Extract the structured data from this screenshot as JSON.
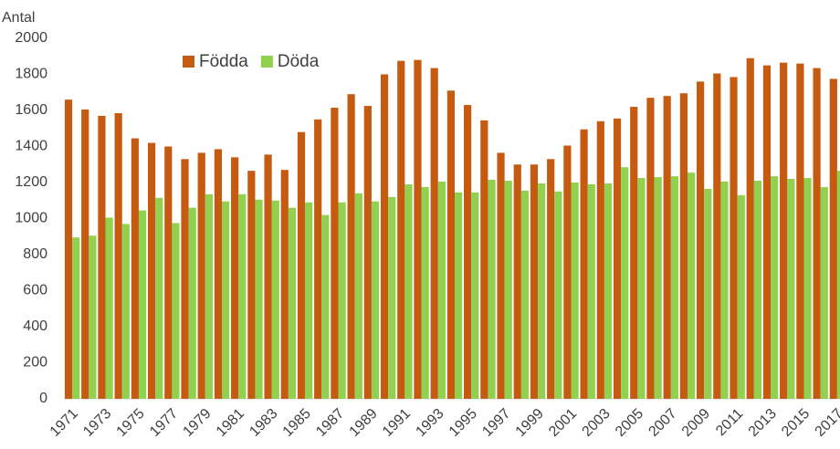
{
  "chart_data": {
    "type": "bar",
    "y_label": "Antal",
    "categories": [
      "1971",
      null,
      "1973",
      null,
      "1975",
      null,
      "1977",
      null,
      "1979",
      null,
      "1981",
      null,
      "1983",
      null,
      "1985",
      null,
      "1987",
      null,
      "1989",
      null,
      "1991",
      null,
      "1993",
      null,
      "1995",
      null,
      "1997",
      null,
      "1999",
      null,
      "2001",
      null,
      "2003",
      null,
      "2005",
      null,
      "2007",
      null,
      "2009",
      null,
      "2011",
      null,
      "2013",
      null,
      "2015",
      null,
      "2017"
    ],
    "series": [
      {
        "name": "Födda",
        "color": "#c55a11",
        "values": [
          1660,
          1605,
          1570,
          1585,
          1445,
          1420,
          1400,
          1330,
          1365,
          1385,
          1340,
          1265,
          1355,
          1270,
          1480,
          1550,
          1615,
          1690,
          1625,
          1800,
          1875,
          1880,
          1835,
          1710,
          1630,
          1545,
          1365,
          1300,
          1300,
          1330,
          1405,
          1495,
          1540,
          1555,
          1620,
          1670,
          1680,
          1695,
          1760,
          1805,
          1785,
          1890,
          1850,
          1865,
          1860,
          1835,
          1775
        ]
      },
      {
        "name": "Döda",
        "color": "#92d050",
        "values": [
          895,
          905,
          1005,
          970,
          1045,
          1115,
          975,
          1060,
          1135,
          1095,
          1135,
          1105,
          1100,
          1060,
          1090,
          1020,
          1090,
          1140,
          1095,
          1120,
          1190,
          1175,
          1205,
          1145,
          1145,
          1215,
          1210,
          1155,
          1195,
          1150,
          1200,
          1190,
          1195,
          1285,
          1225,
          1230,
          1235,
          1255,
          1165,
          1205,
          1130,
          1210,
          1235,
          1220,
          1225,
          1175,
          1265
        ]
      }
    ],
    "ylim": [
      0,
      2000
    ],
    "yticks": [
      0,
      200,
      400,
      600,
      800,
      1000,
      1200,
      1400,
      1600,
      1800,
      2000
    ],
    "legend": "top-left"
  }
}
